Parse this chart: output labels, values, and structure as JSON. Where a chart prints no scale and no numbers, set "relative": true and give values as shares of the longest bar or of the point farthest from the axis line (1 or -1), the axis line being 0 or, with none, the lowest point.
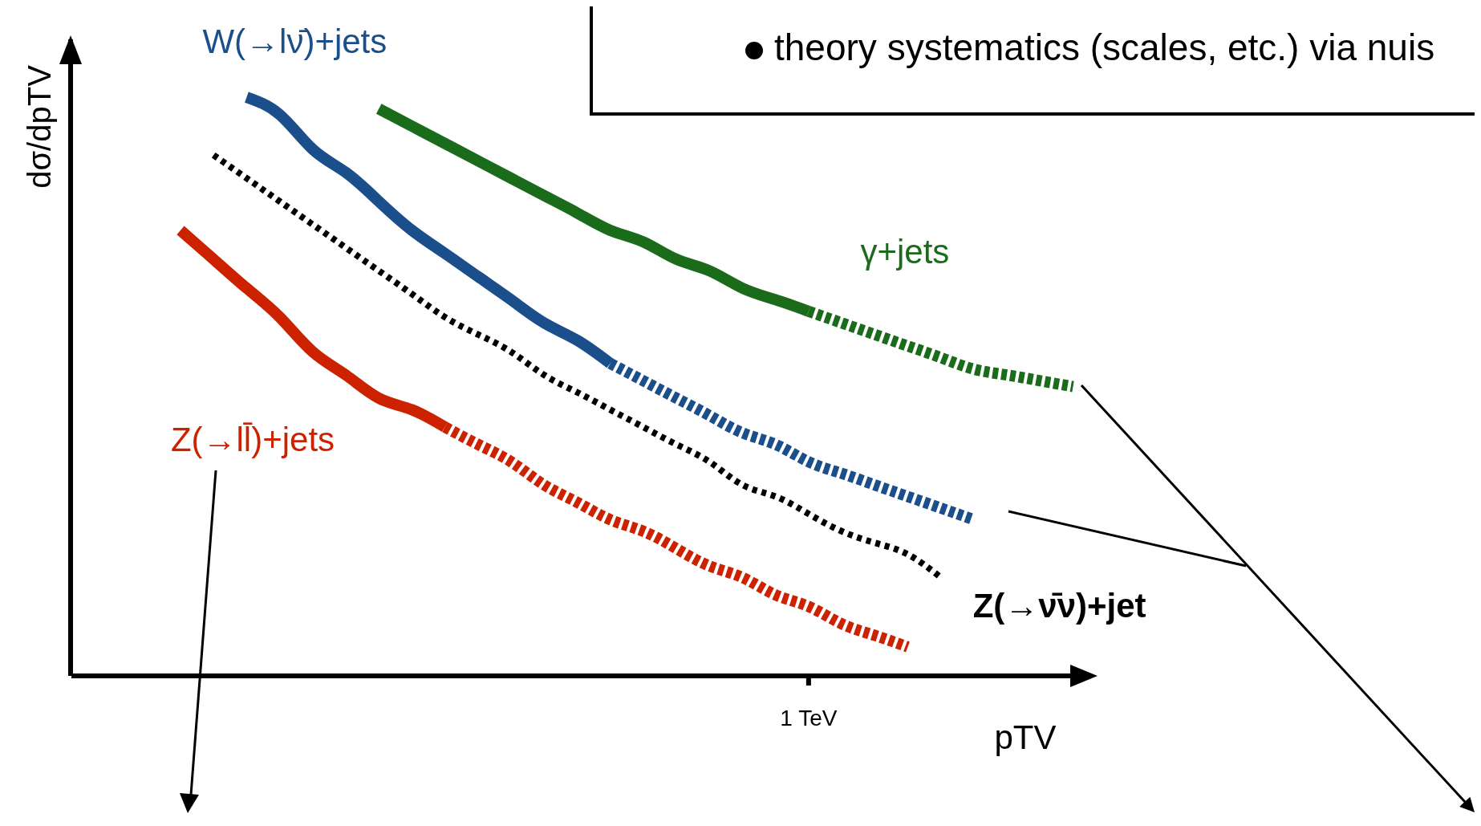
{
  "chart_data": {
    "type": "line",
    "relative": true,
    "xlabel": "pTV",
    "ylabel": "dσ/dpTV",
    "categories": [
      null,
      null,
      null,
      null,
      null,
      null,
      null,
      null,
      null,
      null,
      null,
      null,
      null,
      null,
      null,
      null,
      null,
      null,
      null,
      null,
      null,
      null,
      null,
      null,
      null,
      null,
      null,
      null,
      null
    ],
    "annotations": [
      "theory systematics (scales, etc.) via nuis",
      "1 TeV"
    ],
    "grid": false,
    "legend": false,
    "marker": "none",
    "series": [
      {
        "name": "W(→lν̄)+jets",
        "color": "#1b4f8c",
        "line_style": "solid",
        "values": [
          null,
          null,
          null,
          1.0,
          0.97,
          0.91,
          0.87,
          0.82,
          0.77,
          0.73,
          0.69,
          0.65,
          0.61,
          0.58,
          0.54,
          null,
          null,
          null,
          null,
          null,
          null,
          null,
          null,
          null,
          null,
          null,
          null,
          null,
          null
        ]
      },
      {
        "color": "#1b4f8c",
        "line_style": "dashed",
        "values": [
          null,
          null,
          null,
          null,
          null,
          null,
          null,
          null,
          null,
          null,
          null,
          null,
          null,
          null,
          0.54,
          0.51,
          0.48,
          0.45,
          0.42,
          0.4,
          0.37,
          0.35,
          0.33,
          0.31,
          0.29,
          0.27,
          null,
          null,
          null
        ]
      },
      {
        "name": "Z(→ll̄)+jets",
        "color": "#cc2200",
        "line_style": "solid",
        "values": [
          null,
          0.77,
          0.72,
          0.67,
          0.62,
          0.56,
          0.52,
          0.48,
          0.46,
          0.43,
          null,
          null,
          null,
          null,
          null,
          null,
          null,
          null,
          null,
          null,
          null,
          null,
          null,
          null,
          null,
          null,
          null,
          null,
          null
        ]
      },
      {
        "color": "#cc2200",
        "line_style": "dashed",
        "values": [
          null,
          null,
          null,
          null,
          null,
          null,
          null,
          null,
          null,
          0.43,
          0.4,
          0.37,
          0.33,
          0.3,
          0.27,
          0.25,
          0.22,
          0.19,
          0.17,
          0.14,
          0.12,
          0.09,
          0.07,
          0.05,
          null,
          null,
          null,
          null,
          null
        ]
      },
      {
        "name": "Z(→ν̄ν)+jet",
        "color": "#000000",
        "line_style": "dotted",
        "values": [
          null,
          null,
          0.9,
          0.86,
          0.82,
          0.78,
          0.74,
          0.7,
          0.66,
          0.62,
          0.59,
          0.56,
          0.52,
          0.49,
          0.46,
          0.43,
          0.4,
          0.37,
          0.33,
          0.31,
          0.28,
          0.25,
          0.23,
          0.21,
          0.17,
          null,
          null,
          null,
          null
        ]
      },
      {
        "name": "γ+jets",
        "color": "#1a6b1a",
        "line_style": "solid",
        "values": [
          null,
          null,
          null,
          null,
          null,
          null,
          null,
          0.98,
          0.95,
          0.92,
          0.89,
          0.86,
          0.83,
          0.8,
          0.77,
          0.75,
          0.72,
          0.7,
          0.67,
          0.65,
          0.63,
          null,
          null,
          null,
          null,
          null,
          null,
          null,
          null
        ]
      },
      {
        "color": "#1a6b1a",
        "line_style": "dashed",
        "values": [
          null,
          null,
          null,
          null,
          null,
          null,
          null,
          null,
          null,
          null,
          null,
          null,
          null,
          null,
          null,
          null,
          null,
          null,
          null,
          null,
          0.63,
          0.61,
          0.59,
          0.57,
          0.55,
          0.53,
          0.52,
          0.51,
          0.5
        ]
      }
    ]
  }
}
